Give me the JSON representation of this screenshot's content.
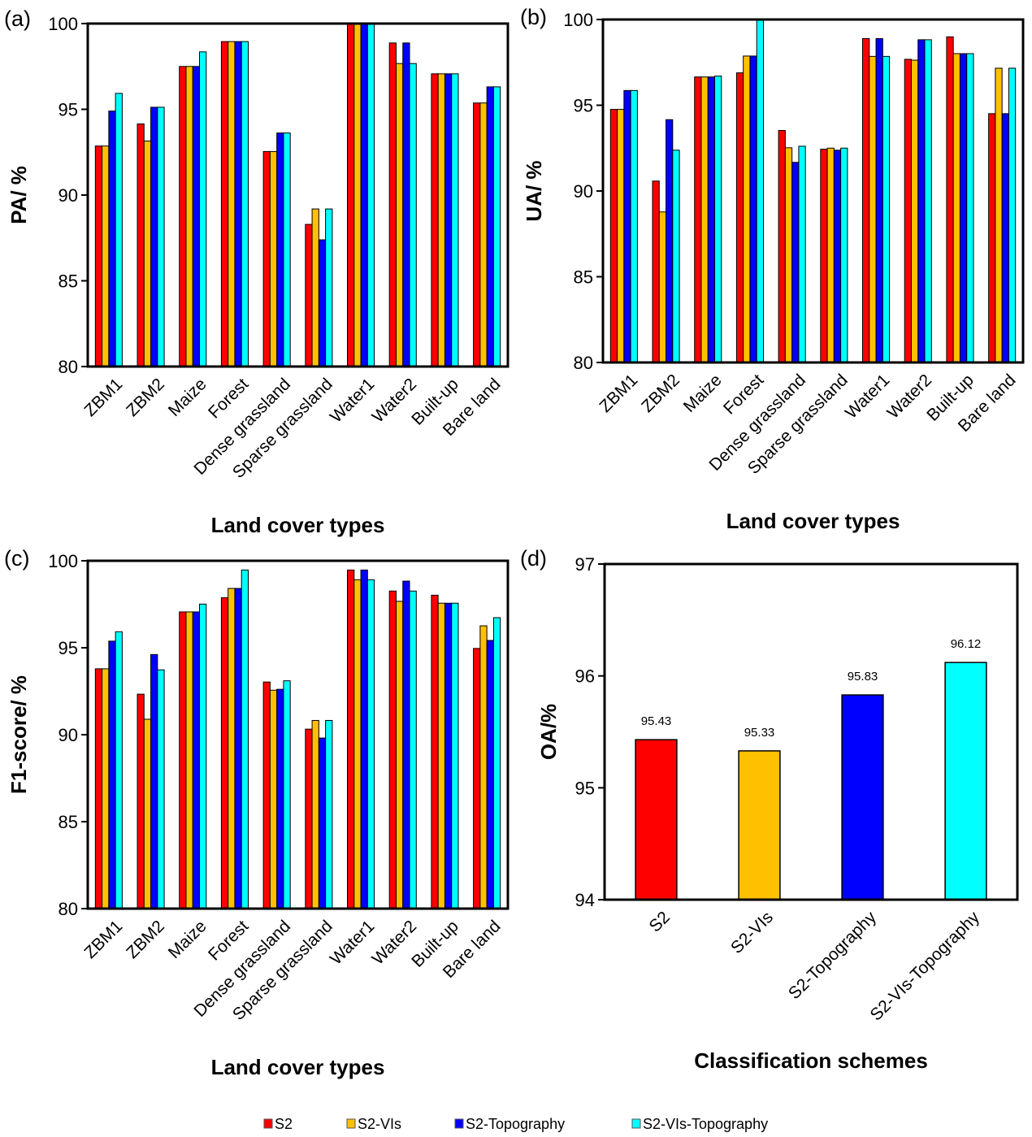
{
  "legend": [
    {
      "name": "S2",
      "color": "#FF0000"
    },
    {
      "name": "S2-VIs",
      "color": "#FFC000"
    },
    {
      "name": "S2-Topography",
      "color": "#0000FF"
    },
    {
      "name": "S2-VIs-Topography",
      "color": "#00FFFF"
    }
  ],
  "chart_data": [
    {
      "panel": "(a)",
      "type": "bar",
      "title": "",
      "xlabel": "Land cover types",
      "ylabel": "PA/ %",
      "ylim": [
        80,
        100
      ],
      "yticks": [
        80,
        85,
        90,
        95,
        100
      ],
      "grid": false,
      "categories": [
        "ZBM1",
        "ZBM2",
        "Maize",
        "Forest",
        "Dense grassland",
        "Sparse grassland",
        "Water1",
        "Water2",
        "Built-up",
        "Bare land"
      ],
      "series": [
        {
          "name": "S2",
          "values": [
            92.86,
            94.15,
            97.5,
            98.95,
            92.54,
            88.29,
            100.0,
            98.87,
            97.07,
            95.37
          ]
        },
        {
          "name": "S2-VIs",
          "values": [
            92.86,
            93.15,
            97.5,
            98.95,
            92.54,
            89.19,
            100.0,
            97.67,
            97.07,
            95.37
          ]
        },
        {
          "name": "S2-Topography",
          "values": [
            94.9,
            95.12,
            97.5,
            98.95,
            93.62,
            87.39,
            100.0,
            98.87,
            97.07,
            96.31
          ]
        },
        {
          "name": "S2-VIs-Topography",
          "values": [
            95.93,
            95.12,
            98.35,
            98.95,
            93.62,
            89.19,
            100.0,
            97.67,
            97.07,
            96.31
          ]
        }
      ]
    },
    {
      "panel": "(b)",
      "type": "bar",
      "title": "",
      "xlabel": "Land cover types",
      "ylabel": "UA/ %",
      "ylim": [
        80,
        100
      ],
      "yticks": [
        80,
        85,
        90,
        95,
        100
      ],
      "grid": false,
      "categories": [
        "ZBM1",
        "ZBM2",
        "Maize",
        "Forest",
        "Dense grassland",
        "Sparse grassland",
        "Water1",
        "Water2",
        "Built-up",
        "Bare land"
      ],
      "series": [
        {
          "name": "S2",
          "values": [
            94.76,
            90.58,
            96.65,
            96.89,
            93.53,
            92.44,
            98.89,
            97.68,
            98.99,
            94.51
          ]
        },
        {
          "name": "S2-VIs",
          "values": [
            94.76,
            88.78,
            96.65,
            97.87,
            92.52,
            92.5,
            97.85,
            97.63,
            98.01,
            97.16
          ]
        },
        {
          "name": "S2-Topography",
          "values": [
            95.86,
            94.16,
            96.65,
            97.87,
            91.67,
            92.38,
            98.89,
            98.82,
            98.01,
            94.51
          ]
        },
        {
          "name": "S2-VIs-Topography",
          "values": [
            95.86,
            92.38,
            96.7,
            100.0,
            92.61,
            92.5,
            97.85,
            98.82,
            98.01,
            97.16
          ]
        }
      ]
    },
    {
      "panel": "(c)",
      "type": "bar",
      "title": "",
      "xlabel": "Land cover types",
      "ylabel": "F1-score/ %",
      "ylim": [
        80,
        100
      ],
      "yticks": [
        80,
        85,
        90,
        95,
        100
      ],
      "grid": false,
      "categories": [
        "ZBM1",
        "ZBM2",
        "Maize",
        "Forest",
        "Dense grassland",
        "Sparse grassland",
        "Water1",
        "Water2",
        "Built-up",
        "Bare land"
      ],
      "series": [
        {
          "name": "S2",
          "values": [
            93.79,
            92.33,
            97.06,
            97.88,
            93.03,
            90.32,
            99.47,
            98.26,
            98.02,
            94.96
          ]
        },
        {
          "name": "S2-VIs",
          "values": [
            93.79,
            90.89,
            97.06,
            98.41,
            92.56,
            90.82,
            98.91,
            97.67,
            97.56,
            96.26
          ]
        },
        {
          "name": "S2-Topography",
          "values": [
            95.38,
            94.61,
            97.06,
            98.41,
            92.61,
            89.81,
            99.47,
            98.83,
            97.56,
            95.42
          ]
        },
        {
          "name": "S2-VIs-Topography",
          "values": [
            95.92,
            93.73,
            97.51,
            99.47,
            93.1,
            90.82,
            98.91,
            98.26,
            97.56,
            96.73
          ]
        }
      ]
    },
    {
      "panel": "(d)",
      "type": "bar",
      "title": "",
      "xlabel": "Classification schemes",
      "ylabel": "OA/%",
      "ylim": [
        94,
        97
      ],
      "yticks": [
        94,
        95,
        96,
        97
      ],
      "grid": false,
      "categories": [
        "S2",
        "S2-VIs",
        "S2-Topography",
        "S2-VIs-Topography"
      ],
      "values": [
        95.43,
        95.33,
        95.83,
        96.12
      ],
      "data_labels": [
        "95.43",
        "95.33",
        "95.83",
        "96.12"
      ]
    }
  ]
}
